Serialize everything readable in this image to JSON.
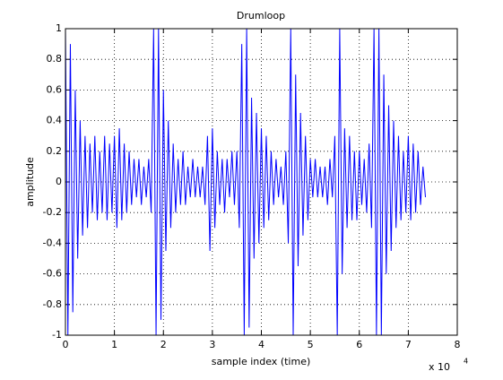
{
  "chart_data": {
    "type": "line",
    "title": "Drumloop",
    "xlabel": "sample index (time)",
    "ylabel": "amplitude",
    "x_multiplier": {
      "base": "x 10",
      "exponent": "4"
    },
    "x": [
      0,
      0.05,
      0.1,
      0.15,
      0.2,
      0.25,
      0.3,
      0.35,
      0.4,
      0.45,
      0.5,
      0.55,
      0.6,
      0.65,
      0.7,
      0.75,
      0.8,
      0.85,
      0.9,
      0.95,
      1.0,
      1.05,
      1.1,
      1.15,
      1.2,
      1.25,
      1.3,
      1.35,
      1.4,
      1.45,
      1.5,
      1.55,
      1.6,
      1.65,
      1.7,
      1.75,
      1.8,
      1.85,
      1.9,
      1.95,
      2.0,
      2.05,
      2.1,
      2.15,
      2.2,
      2.25,
      2.3,
      2.35,
      2.4,
      2.45,
      2.5,
      2.55,
      2.6,
      2.65,
      2.7,
      2.75,
      2.8,
      2.85,
      2.9,
      2.95,
      3.0,
      3.05,
      3.1,
      3.15,
      3.2,
      3.25,
      3.3,
      3.35,
      3.4,
      3.45,
      3.5,
      3.55,
      3.6,
      3.65,
      3.7,
      3.75,
      3.8,
      3.85,
      3.9,
      3.95,
      4.0,
      4.05,
      4.1,
      4.15,
      4.2,
      4.25,
      4.3,
      4.35,
      4.4,
      4.45,
      4.5,
      4.55,
      4.6,
      4.65,
      4.7,
      4.75,
      4.8,
      4.85,
      4.9,
      4.95,
      5.0,
      5.05,
      5.1,
      5.15,
      5.2,
      5.25,
      5.3,
      5.35,
      5.4,
      5.45,
      5.5,
      5.55,
      5.6,
      5.65,
      5.7,
      5.75,
      5.8,
      5.85,
      5.9,
      5.95,
      6.0,
      6.05,
      6.1,
      6.15,
      6.2,
      6.25,
      6.3,
      6.35,
      6.4,
      6.45,
      6.5,
      6.55,
      6.6,
      6.65,
      6.7,
      6.75,
      6.8,
      6.85,
      6.9,
      6.95,
      7.0,
      7.05,
      7.1,
      7.15,
      7.2,
      7.25,
      7.3,
      7.35
    ],
    "series": [
      {
        "color": "#0000ff",
        "values": [
          1,
          -1,
          0.9,
          -0.85,
          0.6,
          -0.5,
          0.4,
          -0.35,
          0.3,
          -0.3,
          0.25,
          -0.2,
          0.3,
          -0.25,
          0.2,
          -0.2,
          0.3,
          -0.25,
          0.25,
          -0.2,
          0.3,
          -0.3,
          0.35,
          -0.25,
          0.25,
          -0.2,
          0.2,
          -0.15,
          0.15,
          -0.1,
          0.15,
          -0.15,
          0.1,
          -0.1,
          0.15,
          -0.2,
          1,
          -1,
          1,
          -0.9,
          0.6,
          -0.45,
          0.4,
          -0.3,
          0.25,
          -0.2,
          0.15,
          -0.15,
          0.2,
          -0.15,
          0.1,
          -0.1,
          0.15,
          -0.1,
          0.1,
          -0.1,
          0.1,
          -0.15,
          0.3,
          -0.45,
          0.35,
          -0.3,
          0.2,
          -0.15,
          0.15,
          -0.2,
          0.15,
          -0.1,
          0.2,
          -0.15,
          0.2,
          -0.3,
          0.9,
          -1,
          1,
          -0.95,
          0.55,
          -0.5,
          0.45,
          -0.4,
          0.35,
          -0.3,
          0.3,
          -0.25,
          0.2,
          -0.15,
          0.15,
          -0.1,
          0.1,
          -0.15,
          0.2,
          -0.4,
          1,
          -1,
          0.7,
          -0.55,
          0.45,
          -0.35,
          0.3,
          -0.25,
          0.15,
          -0.1,
          0.15,
          -0.1,
          0.1,
          -0.1,
          0.1,
          -0.15,
          0.15,
          -0.1,
          0.3,
          -1,
          1,
          -0.6,
          0.35,
          -0.3,
          0.3,
          -0.25,
          0.2,
          -0.25,
          0.2,
          -0.15,
          0.15,
          -0.2,
          0.25,
          -0.3,
          1,
          -1,
          1,
          -1,
          0.7,
          -0.6,
          0.5,
          -0.45,
          0.4,
          -0.3,
          0.3,
          -0.25,
          0.2,
          -0.2,
          0.3,
          -0.25,
          0.25,
          -0.2,
          0.2,
          -0.15,
          0.1,
          -0.1
        ]
      }
    ],
    "xlim": [
      0,
      8
    ],
    "xticks": [
      0,
      1,
      2,
      3,
      4,
      5,
      6,
      7,
      8
    ],
    "ylim": [
      -1,
      1
    ],
    "yticks": [
      -1,
      -0.8,
      -0.6,
      -0.4,
      -0.2,
      0,
      0.2,
      0.4,
      0.6,
      0.8,
      1
    ],
    "grid": true
  }
}
